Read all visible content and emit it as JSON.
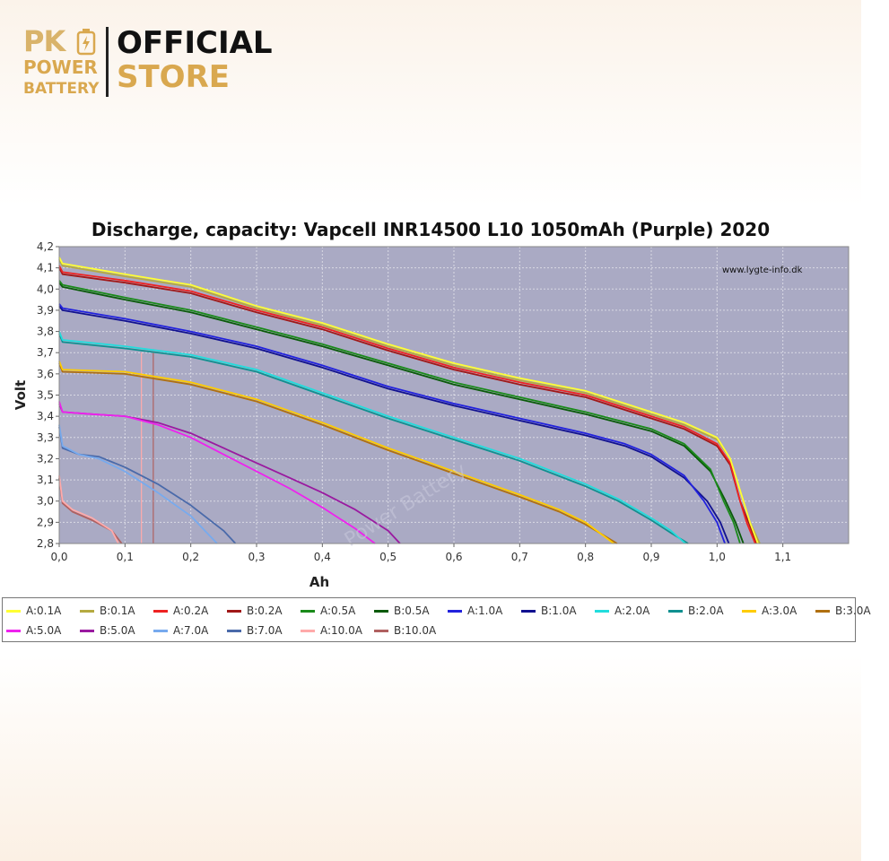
{
  "brand": {
    "pk": "PK",
    "power": "POWER",
    "battery": "BATTERY",
    "official": "OFFICIAL",
    "store": "STORE",
    "accent": "#d9a84f"
  },
  "watermark": "Power Battery",
  "chart_data": {
    "type": "line",
    "title": "Discharge, capacity: Vapcell INR14500 L10 1050mAh (Purple) 2020",
    "xlabel": "Ah",
    "ylabel": "Volt",
    "credit": "www.lygte-info.dk",
    "xlim": [
      0,
      1.2
    ],
    "ylim": [
      2.8,
      4.2
    ],
    "x_ticks": [
      "0,0",
      "0,1",
      "0,2",
      "0,3",
      "0,4",
      "0,5",
      "0,6",
      "0,7",
      "0,8",
      "0,9",
      "1,0",
      "1,1"
    ],
    "y_ticks": [
      "2,8",
      "2,9",
      "3,0",
      "3,1",
      "3,2",
      "3,3",
      "3,4",
      "3,5",
      "3,6",
      "3,7",
      "3,8",
      "3,9",
      "4,0",
      "4,1",
      "4,2"
    ],
    "grid": true,
    "legend_position": "bottom",
    "plot_background": "#aaaac4",
    "series": [
      {
        "name": "A:0.1A",
        "color": "#ffff33",
        "x": [
          0,
          0.005,
          0.1,
          0.2,
          0.3,
          0.4,
          0.5,
          0.6,
          0.7,
          0.8,
          0.9,
          0.95,
          1.0,
          1.02,
          1.04,
          1.05,
          1.062
        ],
        "y": [
          4.15,
          4.12,
          4.07,
          4.02,
          3.92,
          3.84,
          3.74,
          3.65,
          3.58,
          3.52,
          3.42,
          3.37,
          3.3,
          3.2,
          3.0,
          2.9,
          2.8
        ]
      },
      {
        "name": "B:0.1A",
        "color": "#b5aa40",
        "x": [
          0,
          0.005,
          0.1,
          0.2,
          0.3,
          0.4,
          0.5,
          0.6,
          0.7,
          0.8,
          0.9,
          0.95,
          1.0,
          1.02,
          1.04,
          1.05,
          1.065
        ],
        "y": [
          4.14,
          4.11,
          4.06,
          4.01,
          3.91,
          3.83,
          3.73,
          3.64,
          3.57,
          3.51,
          3.41,
          3.36,
          3.29,
          3.2,
          3.0,
          2.9,
          2.8
        ]
      },
      {
        "name": "A:0.2A",
        "color": "#ee2222",
        "x": [
          0,
          0.005,
          0.1,
          0.2,
          0.3,
          0.4,
          0.5,
          0.6,
          0.7,
          0.8,
          0.9,
          0.95,
          1.0,
          1.02,
          1.035,
          1.045,
          1.058
        ],
        "y": [
          4.11,
          4.08,
          4.04,
          3.99,
          3.9,
          3.82,
          3.72,
          3.63,
          3.56,
          3.5,
          3.4,
          3.35,
          3.27,
          3.18,
          3.0,
          2.9,
          2.8
        ]
      },
      {
        "name": "B:0.2A",
        "color": "#a01818",
        "x": [
          0,
          0.005,
          0.1,
          0.2,
          0.3,
          0.4,
          0.5,
          0.6,
          0.7,
          0.8,
          0.9,
          0.95,
          1.0,
          1.02,
          1.035,
          1.048,
          1.06
        ],
        "y": [
          4.1,
          4.07,
          4.03,
          3.98,
          3.89,
          3.81,
          3.71,
          3.62,
          3.55,
          3.49,
          3.39,
          3.34,
          3.26,
          3.17,
          3.0,
          2.9,
          2.8
        ]
      },
      {
        "name": "A:0.5A",
        "color": "#1a8a1a",
        "x": [
          0,
          0.005,
          0.1,
          0.2,
          0.3,
          0.4,
          0.5,
          0.6,
          0.7,
          0.8,
          0.9,
          0.95,
          0.99,
          1.01,
          1.025,
          1.035
        ],
        "y": [
          4.04,
          4.02,
          3.96,
          3.9,
          3.82,
          3.74,
          3.65,
          3.56,
          3.49,
          3.42,
          3.34,
          3.27,
          3.15,
          3.0,
          2.9,
          2.8
        ]
      },
      {
        "name": "B:0.5A",
        "color": "#0a5a0a",
        "x": [
          0,
          0.005,
          0.1,
          0.2,
          0.3,
          0.4,
          0.5,
          0.6,
          0.7,
          0.8,
          0.9,
          0.95,
          0.99,
          1.013,
          1.028,
          1.04
        ],
        "y": [
          4.03,
          4.01,
          3.95,
          3.89,
          3.81,
          3.73,
          3.64,
          3.55,
          3.48,
          3.41,
          3.33,
          3.26,
          3.14,
          3.0,
          2.9,
          2.8
        ]
      },
      {
        "name": "A:1.0A",
        "color": "#2222dd",
        "x": [
          0,
          0.005,
          0.1,
          0.2,
          0.3,
          0.4,
          0.5,
          0.6,
          0.7,
          0.8,
          0.86,
          0.9,
          0.95,
          0.98,
          1.0,
          1.012
        ],
        "y": [
          3.93,
          3.91,
          3.86,
          3.8,
          3.73,
          3.64,
          3.54,
          3.46,
          3.39,
          3.32,
          3.27,
          3.22,
          3.12,
          3.0,
          2.9,
          2.8
        ]
      },
      {
        "name": "B:1.0A",
        "color": "#101090",
        "x": [
          0,
          0.005,
          0.1,
          0.2,
          0.3,
          0.4,
          0.5,
          0.6,
          0.7,
          0.8,
          0.86,
          0.9,
          0.95,
          0.985,
          1.005,
          1.018
        ],
        "y": [
          3.92,
          3.9,
          3.85,
          3.79,
          3.72,
          3.63,
          3.53,
          3.45,
          3.38,
          3.31,
          3.26,
          3.21,
          3.11,
          3.0,
          2.9,
          2.8
        ]
      },
      {
        "name": "A:2.0A",
        "color": "#22dddd",
        "x": [
          0,
          0.005,
          0.1,
          0.2,
          0.3,
          0.4,
          0.5,
          0.6,
          0.7,
          0.8,
          0.85,
          0.9,
          0.93,
          0.952
        ],
        "y": [
          3.8,
          3.76,
          3.73,
          3.69,
          3.62,
          3.51,
          3.4,
          3.3,
          3.2,
          3.08,
          3.01,
          2.92,
          2.86,
          2.8
        ]
      },
      {
        "name": "B:2.0A",
        "color": "#109090",
        "x": [
          0,
          0.005,
          0.1,
          0.2,
          0.3,
          0.4,
          0.5,
          0.6,
          0.7,
          0.8,
          0.85,
          0.9,
          0.93,
          0.956
        ],
        "y": [
          3.79,
          3.75,
          3.72,
          3.68,
          3.61,
          3.5,
          3.39,
          3.29,
          3.19,
          3.07,
          3.0,
          2.91,
          2.85,
          2.8
        ]
      },
      {
        "name": "A:3.0A",
        "color": "#ffcc00",
        "x": [
          0,
          0.005,
          0.1,
          0.2,
          0.3,
          0.4,
          0.5,
          0.6,
          0.7,
          0.76,
          0.8,
          0.843
        ],
        "y": [
          3.66,
          3.62,
          3.61,
          3.56,
          3.48,
          3.37,
          3.25,
          3.14,
          3.03,
          2.96,
          2.9,
          2.8
        ]
      },
      {
        "name": "B:3.0A",
        "color": "#b07010",
        "x": [
          0,
          0.005,
          0.1,
          0.2,
          0.3,
          0.4,
          0.5,
          0.6,
          0.7,
          0.76,
          0.8,
          0.848
        ],
        "y": [
          3.65,
          3.61,
          3.6,
          3.55,
          3.47,
          3.36,
          3.24,
          3.13,
          3.02,
          2.95,
          2.89,
          2.8
        ]
      },
      {
        "name": "A:5.0A",
        "color": "#ee22ee",
        "x": [
          0,
          0.005,
          0.05,
          0.1,
          0.15,
          0.2,
          0.25,
          0.3,
          0.35,
          0.4,
          0.45,
          0.48
        ],
        "y": [
          3.47,
          3.42,
          3.41,
          3.4,
          3.36,
          3.3,
          3.22,
          3.14,
          3.06,
          2.97,
          2.87,
          2.8
        ]
      },
      {
        "name": "B:5.0A",
        "color": "#9a1aa0",
        "x": [
          0,
          0.005,
          0.05,
          0.1,
          0.15,
          0.2,
          0.25,
          0.3,
          0.35,
          0.4,
          0.45,
          0.5,
          0.518
        ],
        "y": [
          3.46,
          3.42,
          3.41,
          3.4,
          3.37,
          3.32,
          3.25,
          3.18,
          3.11,
          3.04,
          2.96,
          2.86,
          2.8
        ]
      },
      {
        "name": "A:7.0A",
        "color": "#77aaee",
        "x": [
          0,
          0.005,
          0.03,
          0.06,
          0.1,
          0.15,
          0.2,
          0.24
        ],
        "y": [
          3.36,
          3.26,
          3.22,
          3.2,
          3.14,
          3.04,
          2.93,
          2.8
        ]
      },
      {
        "name": "B:7.0A",
        "color": "#4a6aaa",
        "x": [
          0,
          0.005,
          0.03,
          0.06,
          0.1,
          0.15,
          0.2,
          0.25,
          0.268
        ],
        "y": [
          3.35,
          3.25,
          3.22,
          3.21,
          3.16,
          3.08,
          2.98,
          2.86,
          2.8
        ]
      },
      {
        "name": "A:10.0A",
        "color": "#ffaaaa",
        "x": [
          0,
          0.005,
          0.02,
          0.05,
          0.08,
          0.09
        ],
        "y": [
          3.12,
          3.0,
          2.96,
          2.92,
          2.86,
          2.8
        ]
      },
      {
        "name": "B:10.0A",
        "color": "#b06060",
        "x": [
          0,
          0.005,
          0.02,
          0.05,
          0.08,
          0.095
        ],
        "y": [
          3.11,
          2.99,
          2.95,
          2.91,
          2.86,
          2.8
        ]
      }
    ],
    "markers": [
      {
        "x": 0.125,
        "color": "#ffaaaa"
      },
      {
        "x": 0.143,
        "color": "#b06060"
      }
    ]
  }
}
